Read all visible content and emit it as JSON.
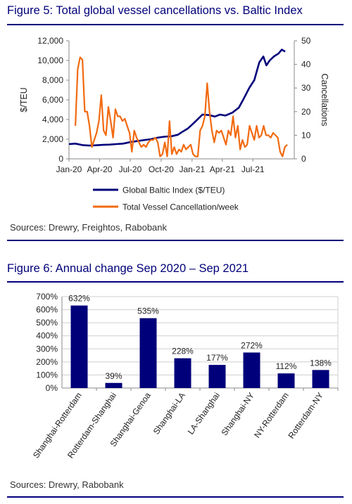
{
  "figures": {
    "fig5": {
      "title": "Figure 5: Total global vessel cancellations vs. Baltic Index",
      "source": "Sources: Drewry, Freightos, Rabobank"
    },
    "fig6": {
      "title": "Figure 6: Annual change Sep 2020 – Sep 2021",
      "source": "Sources: Drewry, Rabobank"
    }
  },
  "chart_data": [
    {
      "type": "line",
      "title": "Figure 5: Total global vessel cancellations vs. Baltic Index",
      "ylabel": "$/TEU",
      "y2label": "Cancellations",
      "xlim": [
        "2020-01-01",
        "2021-11-01"
      ],
      "ylim": [
        0,
        12000
      ],
      "y2lim": [
        0,
        50
      ],
      "x_ticks": [
        "Jan-20",
        "Apr-20",
        "Jul-20",
        "Oct-20",
        "Jan-21",
        "Apr-21",
        "Jul-21"
      ],
      "y_ticks": [
        "0",
        "2,000",
        "4,000",
        "6,000",
        "8,000",
        "10,000",
        "12,000"
      ],
      "y2_ticks": [
        "0",
        "10",
        "20",
        "30",
        "40",
        "50"
      ],
      "legend_position": "bottom",
      "series": [
        {
          "name": "Global Baltic Index ($/TEU)",
          "axis": "left",
          "color": "#00007a",
          "x": [
            "2020-01-01",
            "2020-01-20",
            "2020-02-10",
            "2020-03-01",
            "2020-03-20",
            "2020-04-10",
            "2020-05-01",
            "2020-05-20",
            "2020-06-10",
            "2020-07-01",
            "2020-07-20",
            "2020-08-10",
            "2020-09-01",
            "2020-09-20",
            "2020-10-10",
            "2020-11-01",
            "2020-11-20",
            "2020-12-01",
            "2020-12-20",
            "2021-01-05",
            "2021-01-20",
            "2021-02-01",
            "2021-02-20",
            "2021-03-10",
            "2021-03-25",
            "2021-04-10",
            "2021-05-01",
            "2021-05-20",
            "2021-06-05",
            "2021-06-20",
            "2021-07-05",
            "2021-07-20",
            "2021-08-01",
            "2021-08-10",
            "2021-08-20",
            "2021-09-01",
            "2021-09-15",
            "2021-09-25",
            "2021-10-05"
          ],
          "values": [
            1500,
            1550,
            1400,
            1350,
            1380,
            1420,
            1450,
            1500,
            1550,
            1700,
            1800,
            1900,
            2000,
            2150,
            2250,
            2300,
            2450,
            2700,
            3100,
            3600,
            4100,
            4500,
            4450,
            4300,
            4500,
            4400,
            4700,
            5200,
            6200,
            7200,
            8000,
            9800,
            10400,
            9500,
            10000,
            10400,
            10700,
            11100,
            10900
          ]
        },
        {
          "name": "Total Vessel Cancellation/week",
          "axis": "right",
          "color": "#f26a10",
          "x": [
            "2020-01-20",
            "2020-01-27",
            "2020-02-03",
            "2020-02-10",
            "2020-02-17",
            "2020-02-24",
            "2020-03-02",
            "2020-03-09",
            "2020-03-16",
            "2020-03-23",
            "2020-03-30",
            "2020-04-06",
            "2020-04-13",
            "2020-04-20",
            "2020-04-27",
            "2020-05-04",
            "2020-05-11",
            "2020-05-18",
            "2020-05-25",
            "2020-06-01",
            "2020-06-08",
            "2020-06-15",
            "2020-06-22",
            "2020-06-29",
            "2020-07-06",
            "2020-07-13",
            "2020-07-20",
            "2020-07-27",
            "2020-08-03",
            "2020-08-10",
            "2020-08-17",
            "2020-08-24",
            "2020-08-31",
            "2020-09-07",
            "2020-09-14",
            "2020-09-21",
            "2020-09-28",
            "2020-10-05",
            "2020-10-12",
            "2020-10-19",
            "2020-10-26",
            "2020-11-02",
            "2020-11-09",
            "2020-11-16",
            "2020-11-23",
            "2020-11-30",
            "2020-12-07",
            "2020-12-14",
            "2020-12-21",
            "2020-12-28",
            "2021-01-04",
            "2021-01-11",
            "2021-01-18",
            "2021-01-25",
            "2021-02-01",
            "2021-02-08",
            "2021-02-15",
            "2021-02-22",
            "2021-03-01",
            "2021-03-08",
            "2021-03-15",
            "2021-03-22",
            "2021-03-29",
            "2021-04-05",
            "2021-04-12",
            "2021-04-19",
            "2021-04-26",
            "2021-05-03",
            "2021-05-10",
            "2021-05-17",
            "2021-05-24",
            "2021-05-31",
            "2021-06-07",
            "2021-06-14",
            "2021-06-21",
            "2021-06-28",
            "2021-07-05",
            "2021-07-12",
            "2021-07-19",
            "2021-07-26",
            "2021-08-02",
            "2021-08-09",
            "2021-08-16",
            "2021-08-23",
            "2021-08-30",
            "2021-09-06",
            "2021-09-13",
            "2021-09-20",
            "2021-09-27",
            "2021-10-04",
            "2021-10-11"
          ],
          "values": [
            14,
            38,
            43,
            42,
            20,
            20,
            14,
            5,
            8,
            11,
            16,
            27,
            12,
            10,
            22,
            16,
            9,
            21,
            18,
            18,
            16,
            17,
            14,
            11,
            3,
            12,
            9,
            7,
            5,
            6,
            5,
            7,
            8,
            8,
            9,
            7,
            1,
            2,
            7,
            1,
            16,
            2,
            5,
            2,
            4,
            3,
            6,
            4,
            5,
            6,
            2,
            1,
            1,
            12,
            14,
            18,
            32,
            20,
            12,
            7,
            12,
            11,
            12,
            9,
            6,
            12,
            10,
            18,
            9,
            14,
            4,
            8,
            5,
            6,
            14,
            11,
            8,
            14,
            9,
            10,
            14,
            10,
            10,
            9,
            11,
            10,
            9,
            3,
            1,
            5,
            6
          ]
        }
      ]
    },
    {
      "type": "bar",
      "title": "Figure 6: Annual change Sep 2020 – Sep 2021",
      "categories": [
        "Shanghai-Rotterdam",
        "Rotterdam-Shanghai",
        "Shanghai-Genoa",
        "Shanghai-LA",
        "LA-Shanghai",
        "Shanghai-NY",
        "NY-Rotterdam",
        "Rotterdam-NY"
      ],
      "values": [
        632,
        39,
        535,
        228,
        177,
        272,
        112,
        138
      ],
      "data_labels": [
        "632%",
        "39%",
        "535%",
        "228%",
        "177%",
        "272%",
        "112%",
        "138%"
      ],
      "ylim": [
        0,
        700
      ],
      "y_ticks": [
        "0%",
        "100%",
        "200%",
        "300%",
        "400%",
        "500%",
        "600%",
        "700%"
      ],
      "color": "#00007a",
      "grid": true
    }
  ]
}
